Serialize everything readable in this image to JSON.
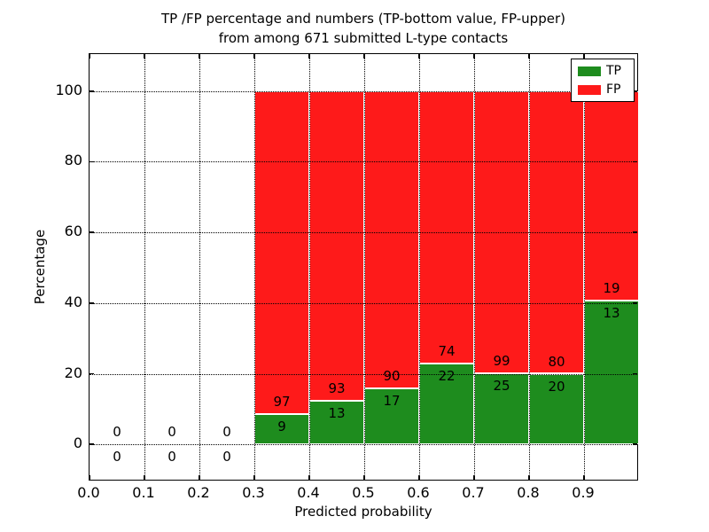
{
  "chart_data": {
    "type": "bar",
    "stacked": true,
    "title_lines": [
      "TP /FP percentage and numbers (TP-bottom value, FP-upper)",
      "from among 671 submitted L-type contacts"
    ],
    "xlabel": "Predicted probability",
    "ylabel": "Percentage",
    "xlim": [
      0.0,
      1.0
    ],
    "ylim": [
      -10.5,
      110.5
    ],
    "x_tick_values": [
      0.0,
      0.1,
      0.2,
      0.3,
      0.4,
      0.5,
      0.6,
      0.7,
      0.8,
      0.9
    ],
    "x_tick_labels": [
      "0.0",
      "0.1",
      "0.2",
      "0.3",
      "0.4",
      "0.5",
      "0.6",
      "0.7",
      "0.8",
      "0.9"
    ],
    "y_tick_values": [
      0,
      20,
      40,
      60,
      80,
      100
    ],
    "grid_style": "dotted",
    "grid_color": "#000000",
    "bar_edge_color": "#ffffff",
    "bin_width": 0.1,
    "x_bin_starts": [
      0.0,
      0.1,
      0.2,
      0.3,
      0.4,
      0.5,
      0.6,
      0.7,
      0.8,
      0.9
    ],
    "bin_ranges": [
      "0.0-0.1",
      "0.1-0.2",
      "0.2-0.3",
      "0.3-0.4",
      "0.4-0.5",
      "0.5-0.6",
      "0.6-0.7",
      "0.7-0.8",
      "0.8-0.9",
      "0.9-1.0"
    ],
    "series": [
      {
        "name": "TP",
        "color": "#1e8c1e",
        "counts": [
          0,
          0,
          0,
          9,
          13,
          17,
          22,
          25,
          20,
          13
        ]
      },
      {
        "name": "FP",
        "color": "#fe1a1a",
        "counts": [
          0,
          0,
          0,
          97,
          93,
          90,
          74,
          99,
          80,
          19
        ]
      }
    ],
    "bar_heights_note": "each non-empty bar is normalized to 100%; bottom green height = TP/(TP+FP)*100",
    "tp_percent_heights": [
      0,
      0,
      0,
      8.49,
      12.26,
      15.89,
      22.92,
      20.16,
      20.0,
      40.63
    ],
    "total_submitted": 671,
    "legend": {
      "position": "upper right",
      "entries": [
        "TP",
        "FP"
      ]
    }
  }
}
